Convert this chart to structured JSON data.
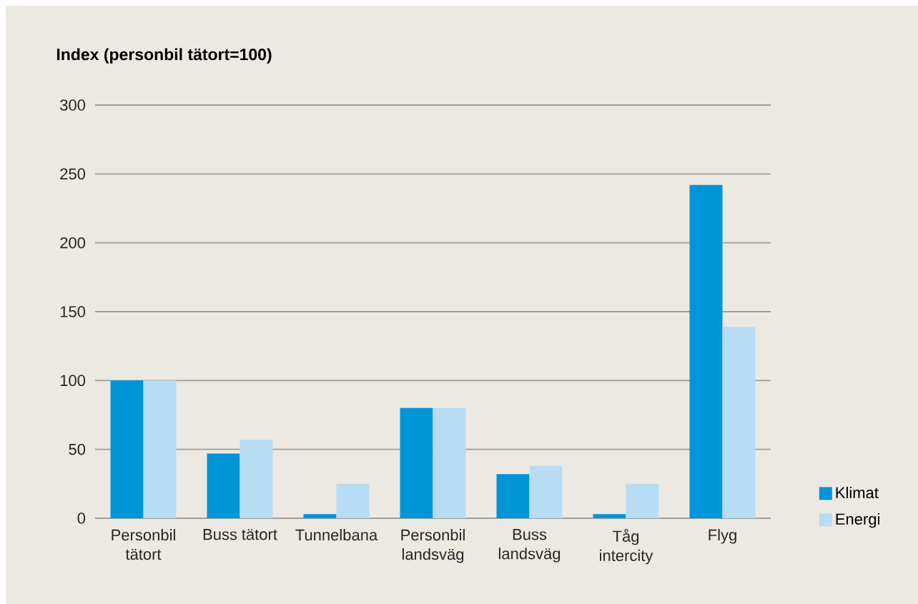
{
  "chart_data": {
    "type": "bar",
    "ylabel": "Index (personbil tätort=100)",
    "categories": [
      "Personbil tätort",
      "Buss tätort",
      "Tunnelbana",
      "Personbil landsväg",
      "Buss landsväg",
      "Tåg intercity",
      "Flyg"
    ],
    "series": [
      {
        "name": "Klimat",
        "color": "#0095d8",
        "values": [
          100,
          47,
          3,
          80,
          32,
          3,
          242
        ]
      },
      {
        "name": "Energi",
        "color": "#b8dcf3",
        "values": [
          100,
          57,
          25,
          80,
          38,
          25,
          139
        ]
      }
    ],
    "ylim": [
      0,
      300
    ],
    "yticks": [
      0,
      50,
      100,
      150,
      200,
      250,
      300
    ],
    "grid": "y",
    "legend": "bottom right"
  }
}
